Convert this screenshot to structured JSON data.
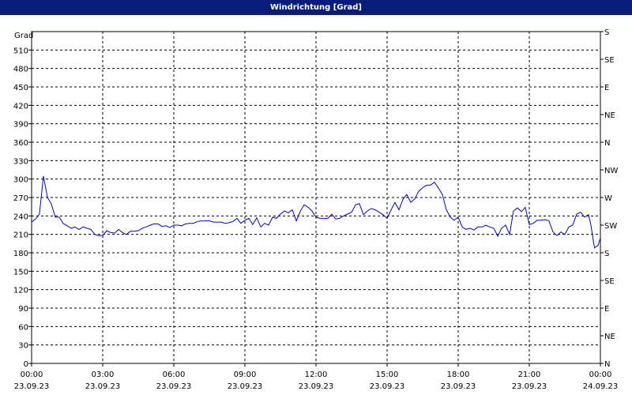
{
  "window_title": "Windrichtung [Grad]",
  "chart_data": {
    "type": "line",
    "title": "Windrichtung [Grad]",
    "ylabel": "Grad",
    "ylim": [
      0,
      540
    ],
    "xlim_hours": [
      0,
      24
    ],
    "y_ticks": [
      0,
      30,
      60,
      90,
      120,
      150,
      180,
      210,
      240,
      270,
      300,
      330,
      360,
      390,
      420,
      450,
      480,
      510
    ],
    "right_axis_labels": [
      "N",
      "NE",
      "E",
      "SE",
      "S",
      "SW",
      "W",
      "NW",
      "N",
      "NE",
      "E",
      "SE",
      "S"
    ],
    "x_ticks": [
      {
        "time": "00:00",
        "date": "23.09.23"
      },
      {
        "time": "03:00",
        "date": "23.09.23"
      },
      {
        "time": "06:00",
        "date": "23.09.23"
      },
      {
        "time": "09:00",
        "date": "23.09.23"
      },
      {
        "time": "12:00",
        "date": "23.09.23"
      },
      {
        "time": "15:00",
        "date": "23.09.23"
      },
      {
        "time": "18:00",
        "date": "23.09.23"
      },
      {
        "time": "21:00",
        "date": "23.09.23"
      },
      {
        "time": "00:00",
        "date": "24.09.23"
      }
    ],
    "grid": true,
    "line_color": "#0000cc",
    "series": [
      {
        "x": [
          0.0,
          0.17,
          0.33,
          0.5,
          0.67,
          0.83,
          1.0,
          1.17,
          1.33,
          1.5,
          1.67,
          1.83,
          2.0,
          2.17,
          2.33,
          2.5,
          2.67,
          2.83,
          3.0,
          3.17,
          3.33,
          3.5,
          3.67,
          3.83,
          4.0,
          4.17,
          4.33,
          4.5,
          4.67,
          4.83,
          5.0,
          5.17,
          5.33,
          5.5,
          5.67,
          5.83,
          6.0,
          6.17,
          6.33,
          6.5,
          6.67,
          6.83,
          7.0,
          7.17,
          7.33,
          7.5,
          7.67,
          7.83,
          8.0,
          8.17,
          8.33,
          8.5,
          8.67,
          8.83,
          9.0,
          9.17,
          9.33,
          9.5,
          9.67,
          9.83,
          10.0,
          10.17,
          10.33,
          10.5,
          10.67,
          10.83,
          11.0,
          11.17,
          11.33,
          11.5,
          11.67,
          11.83,
          12.0,
          12.17,
          12.33,
          12.5,
          12.67,
          12.83,
          13.0,
          13.17,
          13.33,
          13.5,
          13.67,
          13.83,
          14.0,
          14.17,
          14.33,
          14.5,
          14.67,
          14.83,
          15.0,
          15.17,
          15.33,
          15.5,
          15.67,
          15.83,
          16.0,
          16.17,
          16.33,
          16.5,
          16.67,
          16.83,
          17.0,
          17.17,
          17.33,
          17.5,
          17.67,
          17.83,
          18.0,
          18.17,
          18.33,
          18.5,
          18.67,
          18.83,
          19.0,
          19.17,
          19.33,
          19.5,
          19.67,
          19.83,
          20.0,
          20.17,
          20.33,
          20.5,
          20.67,
          20.83,
          21.0,
          21.17,
          21.33,
          21.5,
          21.67,
          21.83,
          22.0,
          22.17,
          22.33,
          22.5,
          22.67,
          22.83,
          23.0,
          23.17,
          23.33,
          23.5,
          23.6,
          23.75,
          23.9,
          24.0
        ],
        "y": [
          230,
          235,
          243,
          305,
          270,
          260,
          238,
          238,
          228,
          224,
          220,
          222,
          218,
          222,
          220,
          218,
          210,
          208,
          208,
          216,
          213,
          212,
          218,
          213,
          210,
          215,
          215,
          216,
          220,
          222,
          225,
          227,
          227,
          223,
          224,
          221,
          225,
          225,
          224,
          227,
          228,
          228,
          231,
          232,
          232,
          232,
          230,
          230,
          230,
          228,
          229,
          231,
          236,
          228,
          233,
          236,
          226,
          237,
          222,
          228,
          225,
          238,
          236,
          243,
          248,
          245,
          250,
          232,
          247,
          258,
          254,
          248,
          238,
          236,
          236,
          236,
          243,
          235,
          236,
          240,
          243,
          246,
          258,
          260,
          242,
          248,
          252,
          250,
          246,
          242,
          236,
          250,
          262,
          250,
          267,
          275,
          262,
          268,
          280,
          286,
          290,
          290,
          295,
          285,
          275,
          250,
          238,
          233,
          238,
          222,
          218,
          220,
          217,
          222,
          222,
          225,
          222,
          220,
          207,
          220,
          225,
          210,
          248,
          253,
          247,
          254,
          226,
          228,
          233,
          233,
          234,
          232,
          214,
          208,
          214,
          210,
          222,
          225,
          243,
          246,
          238,
          242,
          225,
          188,
          192,
          204
        ]
      }
    ]
  }
}
